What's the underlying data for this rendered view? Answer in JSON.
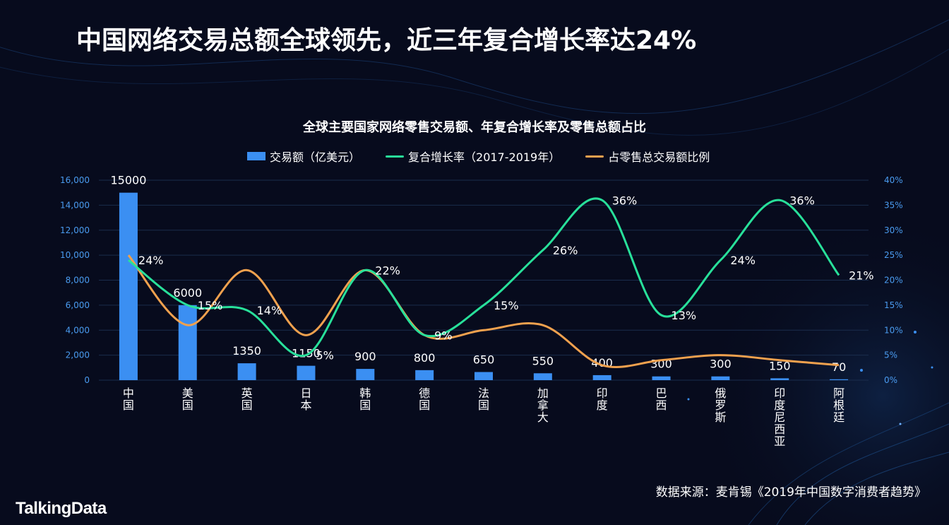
{
  "page": {
    "title": "中国网络交易总额全球领先，近三年复合增长率达24%",
    "source": "数据来源：麦肯锡《2019年中国数字消费者趋势》",
    "logo": "TalkingData"
  },
  "colors": {
    "background": "#070b1d",
    "bar": "#3b8ff2",
    "growth_line": "#28e09a",
    "share_line": "#f0a14e",
    "axis_text": "#4a9bf0",
    "grid": "#1a2d4d"
  },
  "chart_data": {
    "type": "bar",
    "title": "全球主要国家网络零售交易额、年复合增长率及零售总额占比",
    "categories": [
      "中国",
      "美国",
      "英国",
      "日本",
      "韩国",
      "德国",
      "法国",
      "加拿大",
      "印度",
      "巴西",
      "俄罗斯",
      "印度尼西亚",
      "阿根廷"
    ],
    "series": [
      {
        "name": "交易额（亿美元）",
        "type": "bar",
        "axis": "left",
        "values": [
          15000,
          6000,
          1350,
          1150,
          900,
          800,
          650,
          550,
          400,
          300,
          300,
          150,
          70
        ],
        "labels": [
          "15000",
          "6000",
          "1350",
          "1150",
          "900",
          "800",
          "650",
          "550",
          "400",
          "300",
          "300",
          "150",
          "70"
        ]
      },
      {
        "name": "复合增长率（2017-2019年）",
        "type": "line",
        "axis": "right",
        "values": [
          24,
          15,
          14,
          5,
          22,
          9,
          15,
          26,
          36,
          13,
          24,
          36,
          21
        ],
        "labels": [
          "24%",
          "15%",
          "14%",
          "5%",
          "22%",
          "9%",
          "15%",
          "26%",
          "36%",
          "13%",
          "24%",
          "36%",
          "21%"
        ]
      },
      {
        "name": "占零售总交易额比例",
        "type": "line",
        "axis": "right",
        "values": [
          25,
          11,
          22,
          9,
          22,
          9,
          10,
          11,
          3,
          4,
          5,
          4,
          3
        ]
      }
    ],
    "y_left": {
      "min": 0,
      "max": 16000,
      "ticks": [
        "0",
        "2,000",
        "4,000",
        "6,000",
        "8,000",
        "10,000",
        "12,000",
        "14,000",
        "16,000"
      ]
    },
    "y_right": {
      "min": 0,
      "max": 40,
      "ticks": [
        "0%",
        "5%",
        "10%",
        "15%",
        "20%",
        "25%",
        "30%",
        "35%",
        "40%"
      ]
    },
    "grid": true,
    "legend_position": "top-center"
  }
}
